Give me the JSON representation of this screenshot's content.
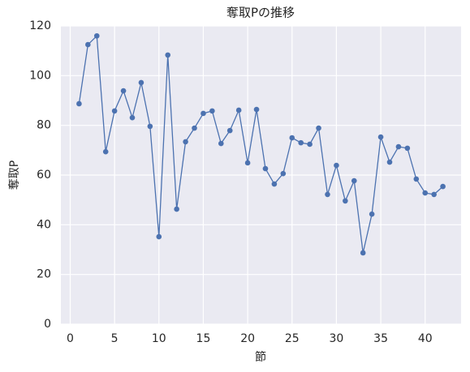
{
  "chart_data": {
    "type": "line",
    "title": "奪取Pの推移",
    "xlabel": "節",
    "ylabel": "奪取P",
    "x": [
      1,
      2,
      3,
      4,
      5,
      6,
      7,
      8,
      9,
      10,
      11,
      12,
      13,
      14,
      15,
      16,
      17,
      18,
      19,
      20,
      21,
      22,
      23,
      24,
      25,
      26,
      27,
      28,
      29,
      30,
      31,
      32,
      33,
      34,
      35,
      36,
      37,
      38,
      39,
      40,
      41,
      42
    ],
    "series": [
      {
        "name": "奪取P",
        "color": "#4c72b0",
        "values": [
          88.7,
          112.5,
          116,
          69.4,
          85.8,
          93.9,
          83.1,
          97.2,
          79.6,
          35.2,
          108.3,
          46.3,
          73.4,
          78.9,
          84.8,
          85.8,
          72.7,
          77.9,
          86.1,
          64.9,
          86.4,
          62.6,
          56.4,
          60.6,
          75,
          73,
          72.4,
          78.9,
          52.2,
          63.9,
          49.6,
          57.7,
          28.7,
          44.3,
          75.3,
          65.2,
          71.4,
          70.8,
          58.4,
          52.8,
          52.2,
          55.4
        ]
      }
    ],
    "xlim": [
      -1.05,
      44.05
    ],
    "xticks": [
      0,
      5,
      10,
      15,
      20,
      25,
      30,
      35,
      40
    ],
    "ylim": [
      0,
      120
    ],
    "yticks": [
      0,
      20,
      40,
      60,
      80,
      100,
      120
    ],
    "grid": true,
    "markers": true
  }
}
